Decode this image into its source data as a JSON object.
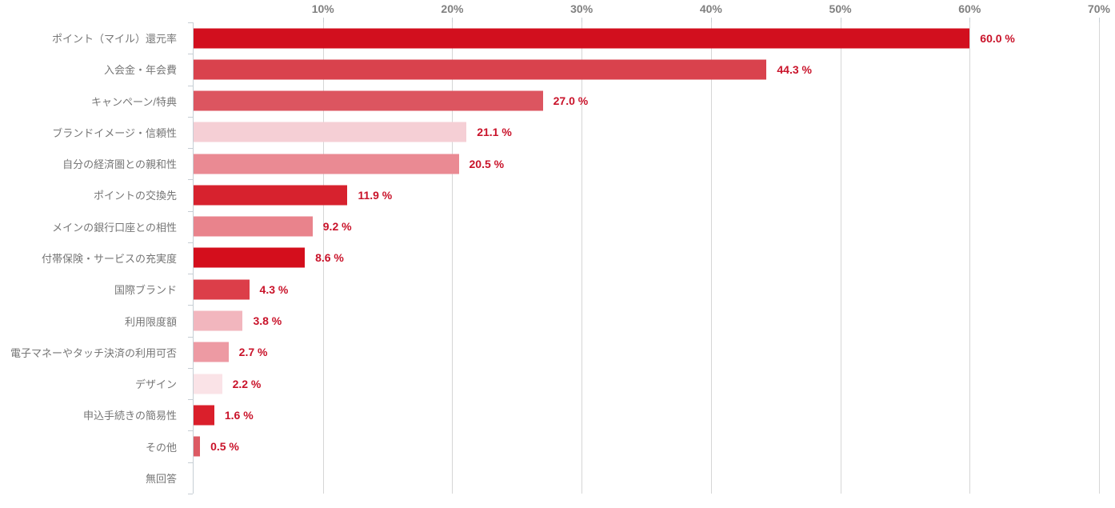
{
  "chart_data": {
    "type": "bar",
    "orientation": "horizontal",
    "title": "",
    "xlabel": "",
    "ylabel": "",
    "xlim": [
      0,
      70
    ],
    "x_ticks": [
      "10%",
      "20%",
      "30%",
      "40%",
      "50%",
      "60%",
      "70%"
    ],
    "grid": true,
    "legend": false,
    "categories": [
      "ポイント（マイル）還元率",
      "入会金・年会費",
      "キャンペーン/特典",
      "ブランドイメージ・信頼性",
      "自分の経済圏との親和性",
      "ポイントの交換先",
      "メインの銀行口座との相性",
      "付帯保険・サービスの充実度",
      "国際ブランド",
      "利用限度額",
      "電子マネーやタッチ決済の利用可否",
      "デザイン",
      "申込手続きの簡易性",
      "その他",
      "無回答"
    ],
    "values": [
      60.0,
      44.3,
      27.0,
      21.1,
      20.5,
      11.9,
      9.2,
      8.6,
      4.3,
      3.8,
      2.7,
      2.2,
      1.6,
      0.5,
      0
    ],
    "value_labels": [
      "60.0 %",
      "44.3 %",
      "27.0 %",
      "21.1 %",
      "20.5 %",
      "11.9 %",
      "9.2 %",
      "8.6 %",
      "4.3 %",
      "3.8 %",
      "2.7 %",
      "2.2 %",
      "1.6 %",
      "0.5 %",
      ""
    ],
    "bar_colors": [
      "#d20f1e",
      "#d9424d",
      "#dc5560",
      "#f5cfd5",
      "#ea8a93",
      "#d7222e",
      "#e9838c",
      "#d40e1c",
      "#dc3e49",
      "#f2b6be",
      "#ed9aa3",
      "#fae3e7",
      "#da1f2b",
      "#dc5a64",
      "transparent"
    ],
    "colors": {
      "value_label": "#c9132a",
      "axis_tick_label": "#808080",
      "category_label": "#767676",
      "gridline": "#d6d6d6",
      "axis_line": "#c6ced4",
      "background": "#ffffff"
    }
  }
}
